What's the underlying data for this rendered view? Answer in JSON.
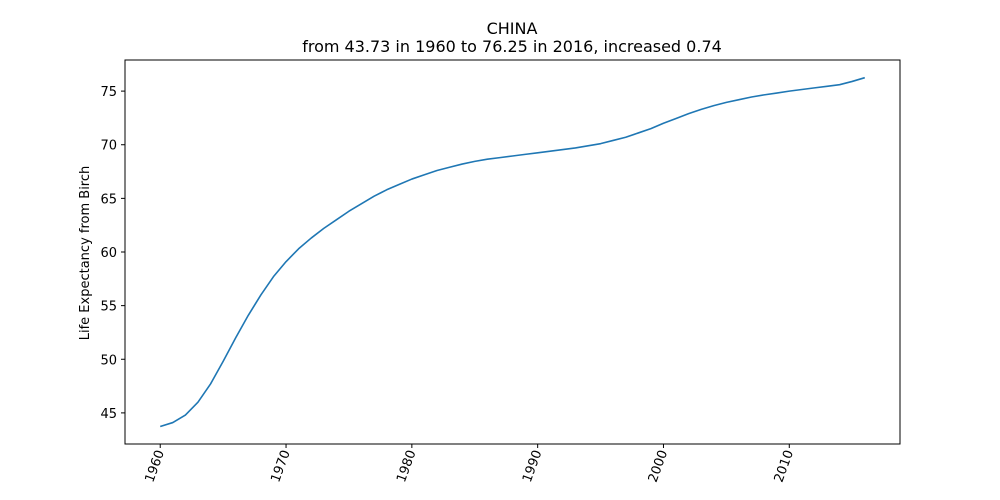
{
  "chart_data": {
    "type": "line",
    "title": "CHINA",
    "subtitle": "from 43.73 in 1960 to 76.25 in 2016, increased 0.74",
    "xlabel": "",
    "ylabel": "Life Expectancy from Birch",
    "xlim": [
      1957.2,
      2018.8
    ],
    "ylim": [
      42.1,
      77.9
    ],
    "x_ticks": [
      1960,
      1970,
      1980,
      1990,
      2000,
      2010
    ],
    "y_ticks": [
      45,
      50,
      55,
      60,
      65,
      70,
      75
    ],
    "grid": false,
    "line_color": "#1f77b4",
    "series": [
      {
        "x": [
          1960,
          1961,
          1962,
          1963,
          1964,
          1965,
          1966,
          1967,
          1968,
          1969,
          1970,
          1971,
          1972,
          1973,
          1974,
          1975,
          1976,
          1977,
          1978,
          1979,
          1980,
          1981,
          1982,
          1983,
          1984,
          1985,
          1986,
          1987,
          1988,
          1989,
          1990,
          1991,
          1992,
          1993,
          1994,
          1995,
          1996,
          1997,
          1998,
          1999,
          2000,
          2001,
          2002,
          2003,
          2004,
          2005,
          2006,
          2007,
          2008,
          2009,
          2010,
          2011,
          2012,
          2013,
          2014,
          2015,
          2016
        ],
        "values": [
          43.73,
          44.1,
          44.8,
          46.0,
          47.7,
          49.8,
          52.0,
          54.1,
          56.0,
          57.7,
          59.1,
          60.3,
          61.3,
          62.2,
          63.0,
          63.8,
          64.5,
          65.2,
          65.8,
          66.3,
          66.8,
          67.2,
          67.6,
          67.9,
          68.2,
          68.45,
          68.65,
          68.8,
          68.95,
          69.1,
          69.25,
          69.4,
          69.55,
          69.7,
          69.9,
          70.1,
          70.4,
          70.7,
          71.1,
          71.5,
          72.0,
          72.45,
          72.9,
          73.3,
          73.65,
          73.95,
          74.2,
          74.45,
          74.65,
          74.82,
          75.0,
          75.15,
          75.3,
          75.45,
          75.6,
          75.9,
          76.25
        ]
      }
    ]
  }
}
